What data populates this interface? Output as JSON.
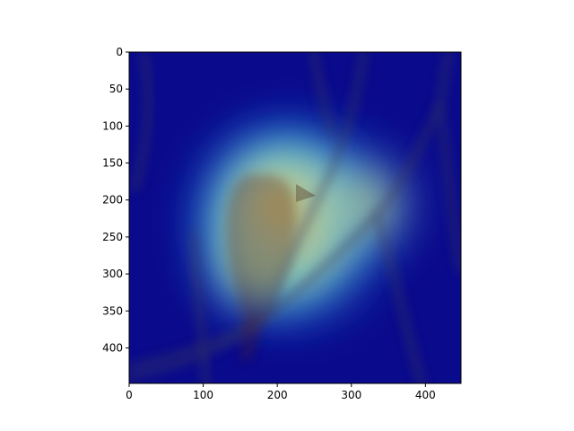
{
  "chart_data": {
    "type": "heatmap",
    "title": "",
    "xlabel": "",
    "ylabel": "",
    "xlim": [
      0,
      448
    ],
    "ylim": [
      448,
      0
    ],
    "xticks": [
      0,
      100,
      200,
      300,
      400
    ],
    "yticks": [
      0,
      50,
      100,
      150,
      200,
      250,
      300,
      350,
      400
    ],
    "grid": false,
    "colormap": "jet",
    "background_color": "#0a0a8c",
    "blobs": [
      {
        "x": 215,
        "y": 230,
        "rx": 120,
        "ry": 130,
        "intensity": 1.0
      },
      {
        "x": 205,
        "y": 215,
        "rx": 80,
        "ry": 85,
        "intensity": 0.95
      },
      {
        "x": 320,
        "y": 205,
        "rx": 55,
        "ry": 60,
        "intensity": 0.75
      },
      {
        "x": 170,
        "y": 290,
        "rx": 60,
        "ry": 55,
        "intensity": 0.6
      }
    ]
  }
}
